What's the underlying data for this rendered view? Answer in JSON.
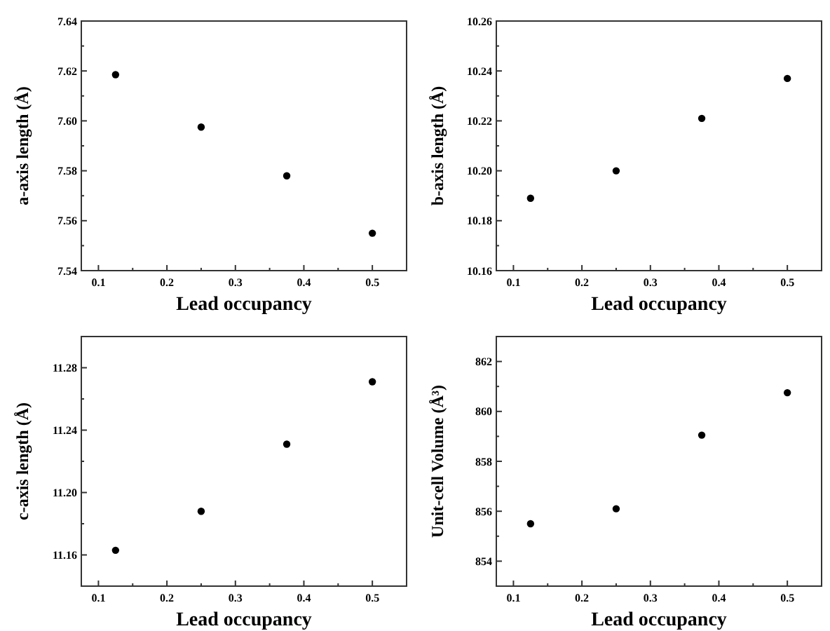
{
  "chart_data": [
    {
      "type": "scatter",
      "xlabel": "Lead occupancy",
      "ylabel": "a-axis length (Å)",
      "x": [
        0.125,
        0.25,
        0.375,
        0.5
      ],
      "values": [
        7.6185,
        7.5975,
        7.578,
        7.555
      ],
      "color": "#000000",
      "marker": "circle",
      "xlim": [
        0.075,
        0.55
      ],
      "xticks": [
        0.1,
        {
          "value": 0.15,
          "label": null
        },
        0.2,
        {
          "value": 0.25,
          "label": null
        },
        0.3,
        {
          "value": 0.35,
          "label": null
        },
        0.4,
        {
          "value": 0.45,
          "label": null
        },
        0.5
      ],
      "ylim": [
        7.54,
        7.64
      ],
      "yticks": [
        7.54,
        {
          "value": 7.55,
          "label": null
        },
        7.56,
        {
          "value": 7.57,
          "label": null
        },
        7.58,
        {
          "value": 7.59,
          "label": null
        },
        {
          "value": 7.6,
          "label": "7.60"
        },
        {
          "value": 7.61,
          "label": null
        },
        7.62,
        {
          "value": 7.63,
          "label": null
        },
        7.64
      ],
      "grid": false
    },
    {
      "type": "scatter",
      "xlabel": "Lead occupancy",
      "ylabel": "b-axis length (Å)",
      "x": [
        0.125,
        0.25,
        0.375,
        0.5
      ],
      "values": [
        10.189,
        10.2,
        10.221,
        10.237
      ],
      "color": "#000000",
      "marker": "circle",
      "xlim": [
        0.075,
        0.55
      ],
      "xticks": [
        0.1,
        {
          "value": 0.15,
          "label": null
        },
        0.2,
        {
          "value": 0.25,
          "label": null
        },
        0.3,
        {
          "value": 0.35,
          "label": null
        },
        0.4,
        {
          "value": 0.45,
          "label": null
        },
        0.5
      ],
      "ylim": [
        10.16,
        10.26
      ],
      "yticks": [
        10.16,
        {
          "value": 10.17,
          "label": null
        },
        10.18,
        {
          "value": 10.19,
          "label": null
        },
        {
          "value": 10.2,
          "label": "10.20"
        },
        {
          "value": 10.21,
          "label": null
        },
        10.22,
        {
          "value": 10.23,
          "label": null
        },
        10.24,
        {
          "value": 10.25,
          "label": null
        },
        10.26
      ],
      "grid": false
    },
    {
      "type": "scatter",
      "xlabel": "Lead occupancy",
      "ylabel": "c-axis length (Å)",
      "x": [
        0.125,
        0.25,
        0.375,
        0.5
      ],
      "values": [
        11.163,
        11.188,
        11.231,
        11.271
      ],
      "color": "#000000",
      "marker": "circle",
      "xlim": [
        0.075,
        0.55
      ],
      "xticks": [
        0.1,
        {
          "value": 0.15,
          "label": null
        },
        0.2,
        {
          "value": 0.25,
          "label": null
        },
        0.3,
        {
          "value": 0.35,
          "label": null
        },
        0.4,
        {
          "value": 0.45,
          "label": null
        },
        0.5
      ],
      "ylim": [
        11.14,
        11.3
      ],
      "yticks": [
        11.16,
        {
          "value": 11.18,
          "label": null
        },
        {
          "value": 11.2,
          "label": "11.20"
        },
        {
          "value": 11.22,
          "label": null
        },
        11.24,
        {
          "value": 11.26,
          "label": null
        },
        11.28
      ],
      "grid": false
    },
    {
      "type": "scatter",
      "xlabel": "Lead occupancy",
      "ylabel": "Unit-cell Volume (Å³)",
      "x": [
        0.125,
        0.25,
        0.375,
        0.5
      ],
      "values": [
        855.5,
        856.1,
        859.05,
        860.75
      ],
      "color": "#000000",
      "marker": "circle",
      "xlim": [
        0.075,
        0.55
      ],
      "xticks": [
        0.1,
        {
          "value": 0.15,
          "label": null
        },
        0.2,
        {
          "value": 0.25,
          "label": null
        },
        0.3,
        {
          "value": 0.35,
          "label": null
        },
        0.4,
        {
          "value": 0.45,
          "label": null
        },
        0.5
      ],
      "ylim": [
        853,
        863
      ],
      "yticks": [
        854,
        {
          "value": 855,
          "label": null
        },
        856,
        {
          "value": 857,
          "label": null
        },
        858,
        {
          "value": 859,
          "label": null
        },
        860,
        {
          "value": 861,
          "label": null
        },
        862
      ],
      "grid": false
    }
  ]
}
